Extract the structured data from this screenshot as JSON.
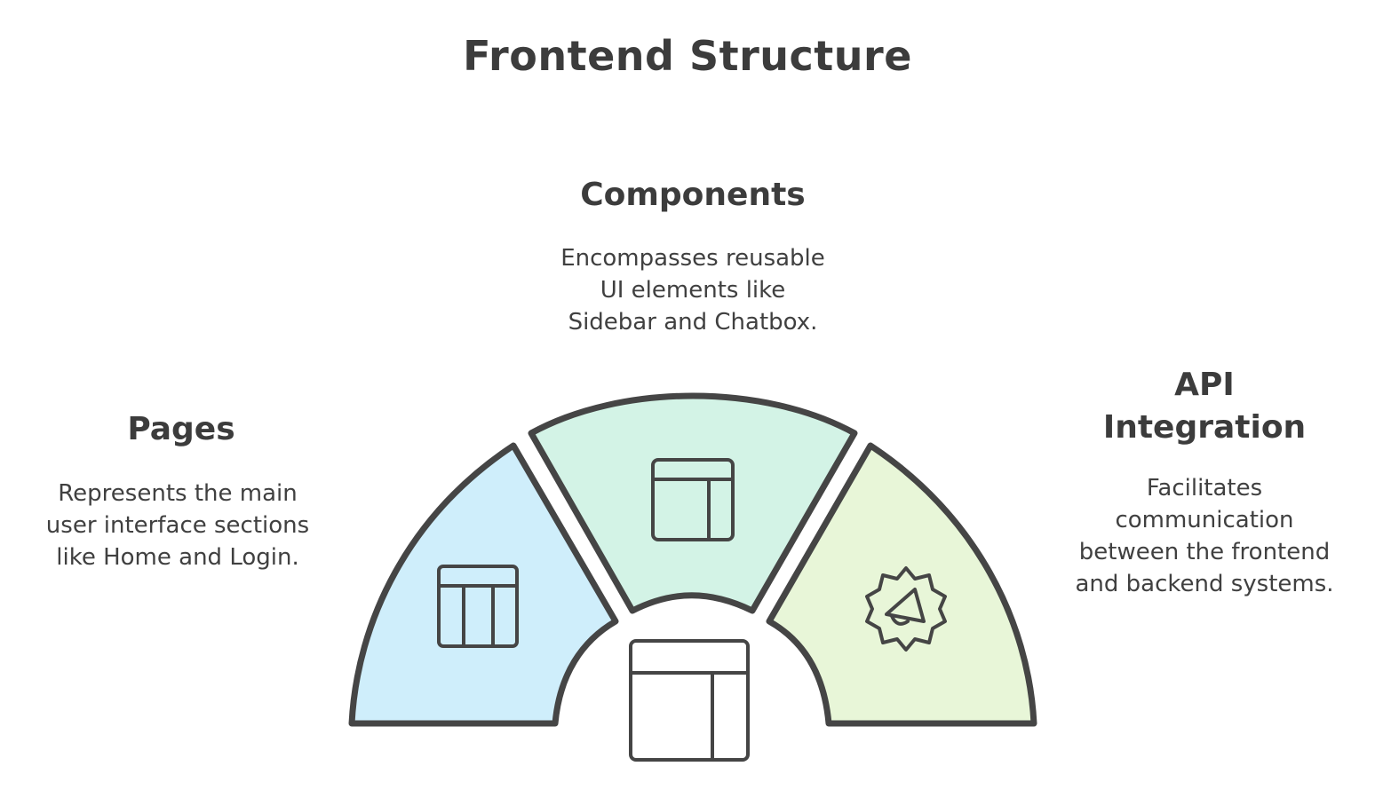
{
  "title": "Frontend Structure",
  "segments": [
    {
      "heading": "Pages",
      "description": "Represents the main\nuser interface sections\nlike Home and Login.",
      "icon": "layout-columns-icon",
      "color": "#cfeefb"
    },
    {
      "heading": "Components",
      "description": "Encompasses reusable\nUI elements like\nSidebar and Chatbox.",
      "icon": "layout-sidebar-icon",
      "color": "#d3f3e6"
    },
    {
      "heading": "API\nIntegration",
      "description": "Facilitates\ncommunication\nbetween the frontend\nand backend systems.",
      "icon": "megaphone-gear-icon",
      "color": "#e8f6d8"
    }
  ],
  "center": {
    "icon": "layout-window-icon"
  },
  "colors": {
    "stroke": "#454545",
    "text": "#3f3f3f"
  }
}
